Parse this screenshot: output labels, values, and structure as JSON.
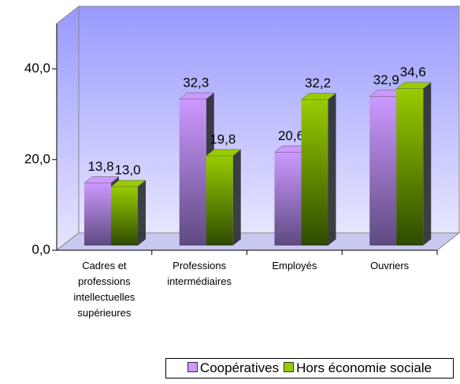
{
  "chart_data": {
    "type": "bar3d",
    "categories": [
      "Cadres et professions intellectuelles supérieures",
      "Professions intermédiaires",
      "Employés",
      "Ouvriers"
    ],
    "series": [
      {
        "name": "Coopératives",
        "color": "#cc99ff",
        "values": [
          13.8,
          32.3,
          20.6,
          32.9
        ],
        "value_labels": [
          "13,8",
          "32,3",
          "20,6",
          "32,9"
        ]
      },
      {
        "name": "Hors économie sociale",
        "color": "#99cc00",
        "values": [
          13.0,
          19.8,
          32.2,
          34.6
        ],
        "value_labels": [
          "13,0",
          "19,8",
          "32,2",
          "34,6"
        ]
      }
    ],
    "ylim": [
      0,
      50
    ],
    "yticks": [
      {
        "value": 0,
        "label": "0,0"
      },
      {
        "value": 20,
        "label": "20,0"
      },
      {
        "value": 40,
        "label": "40,0"
      }
    ],
    "legend": "bottom-right"
  }
}
